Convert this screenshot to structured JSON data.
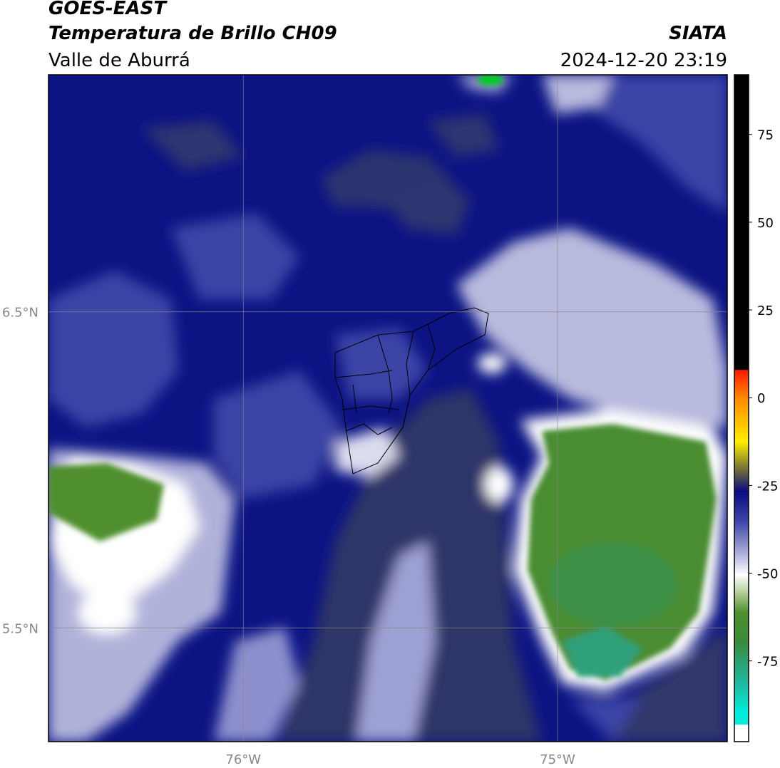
{
  "header": {
    "line1": "GOES-EAST",
    "line2": "Temperatura de Brillo CH09",
    "line3": "Valle de Aburrá",
    "agency": "SIATA",
    "timestamp": "2024-12-20 23:19"
  },
  "map": {
    "xlim": [
      -76.62,
      -74.46
    ],
    "ylim": [
      5.14,
      7.25
    ],
    "xticks": [
      {
        "value": -76,
        "label": "76°W"
      },
      {
        "value": -75,
        "label": "75°W"
      }
    ],
    "yticks": [
      {
        "value": 6.5,
        "label": "6.5°N"
      },
      {
        "value": 5.5,
        "label": "5.5°N"
      }
    ],
    "grid": true
  },
  "colorbar": {
    "lim": [
      -98,
      92
    ],
    "ticks": [
      75,
      50,
      25,
      0,
      -25,
      -50,
      -75
    ]
  }
}
